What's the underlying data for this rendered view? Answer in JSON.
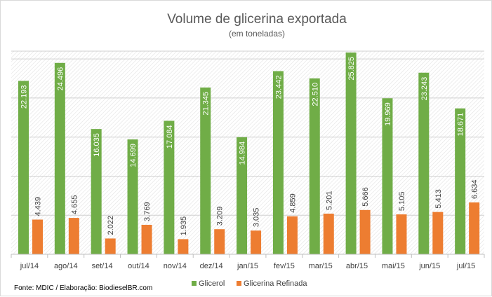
{
  "chart_data": {
    "type": "bar",
    "title": "Volume de glicerina exportada",
    "subtitle": "(em toneladas)",
    "categories": [
      "jul/14",
      "ago/14",
      "set/14",
      "out/14",
      "nov/14",
      "dez/14",
      "jan/15",
      "fev/15",
      "mar/15",
      "abr/15",
      "mai/15",
      "jun/15",
      "jul/15"
    ],
    "series": [
      {
        "name": "Glicerol",
        "color": "#70ad47",
        "values": [
          22193,
          24496,
          16035,
          14699,
          17084,
          21345,
          14984,
          23442,
          22510,
          25825,
          19969,
          23243,
          18671
        ],
        "labels": [
          "22.193",
          "24.496",
          "16.035",
          "14.699",
          "17.084",
          "21.345",
          "14.984",
          "23.442",
          "22.510",
          "25.825",
          "19.969",
          "23.243",
          "18.671"
        ]
      },
      {
        "name": "Glicerina Refinada",
        "color": "#ed7d31",
        "values": [
          4439,
          4655,
          2022,
          3769,
          1935,
          3209,
          3035,
          4859,
          5201,
          5666,
          5105,
          5413,
          6634
        ],
        "labels": [
          "4.439",
          "4.655",
          "2.022",
          "3.769",
          "1.935",
          "3.209",
          "3.035",
          "4.859",
          "5.201",
          "5.666",
          "5.105",
          "5.413",
          "6.634"
        ]
      }
    ],
    "ylim": [
      0,
      26000
    ],
    "grid": true,
    "legend": "bottom"
  },
  "source_note": "Fonte: MDIC / Elaboração: BiodieselBR.com"
}
